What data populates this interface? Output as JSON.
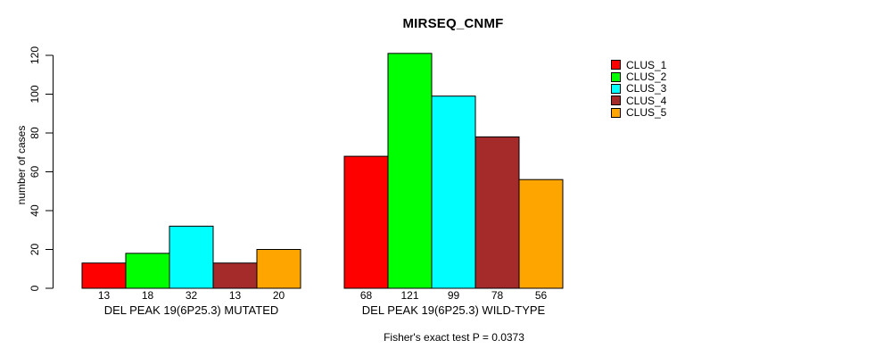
{
  "chart_data": {
    "type": "bar",
    "title": "MIRSEQ_CNMF",
    "ylabel": "number of cases",
    "xlabel": "",
    "annotation": "Fisher's exact test P = 0.0373",
    "ylim": [
      0,
      120
    ],
    "y_ticks": [
      0,
      20,
      40,
      60,
      80,
      100,
      120
    ],
    "grid": false,
    "legend_position": "right",
    "bar_outline_color": "#000000",
    "series": [
      {
        "name": "CLUS_1",
        "color": "#FF0000"
      },
      {
        "name": "CLUS_2",
        "color": "#00FF00"
      },
      {
        "name": "CLUS_3",
        "color": "#00FFFF"
      },
      {
        "name": "CLUS_4",
        "color": "#A52A2A"
      },
      {
        "name": "CLUS_5",
        "color": "#FFA500"
      }
    ],
    "groups": [
      {
        "label": "DEL PEAK 19(6P25.3) MUTATED",
        "values": [
          13,
          18,
          32,
          13,
          20
        ]
      },
      {
        "label": "DEL PEAK 19(6P25.3) WILD-TYPE",
        "values": [
          68,
          121,
          99,
          78,
          56
        ]
      }
    ]
  }
}
